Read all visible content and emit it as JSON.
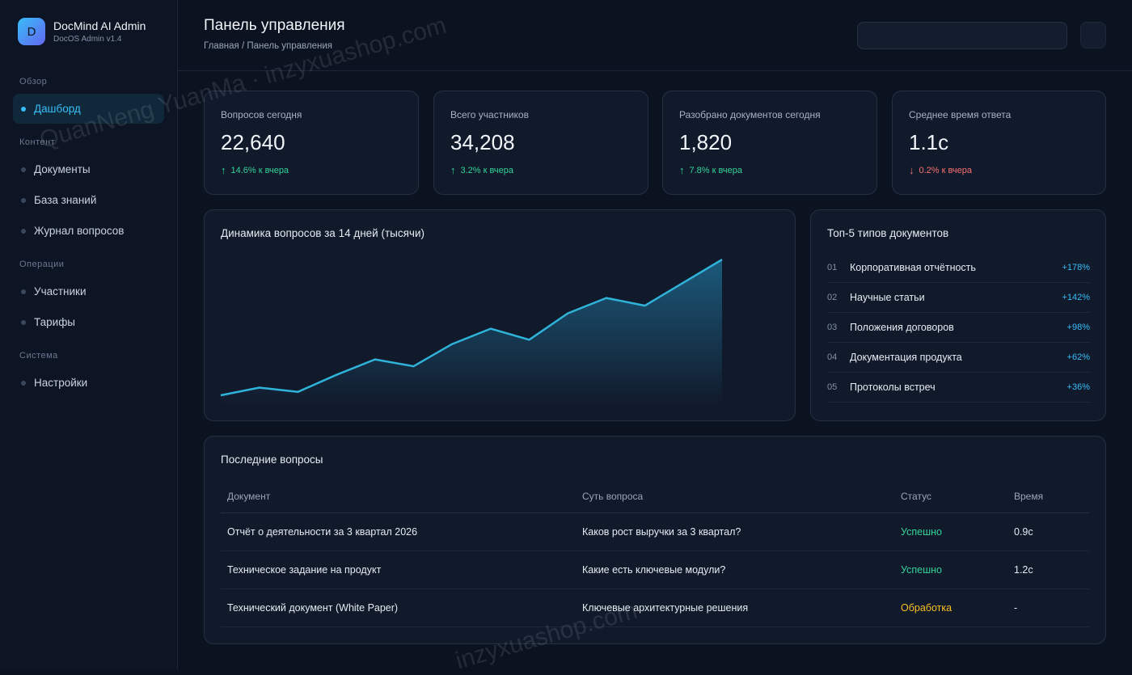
{
  "brand": {
    "logo_letter": "D",
    "name": "DocMind AI Admin",
    "version": "DocOS Admin v1.4"
  },
  "sidebar": {
    "sections": [
      {
        "title": "Обзор"
      },
      {
        "title": "Контент"
      },
      {
        "title": "Операции"
      },
      {
        "title": "Система"
      }
    ],
    "items": [
      {
        "label": "Дашборд",
        "active": true
      },
      {
        "label": "Документы"
      },
      {
        "label": "База знаний"
      },
      {
        "label": "Журнал вопросов"
      },
      {
        "label": "Участники"
      },
      {
        "label": "Тарифы"
      },
      {
        "label": "Настройки"
      }
    ]
  },
  "header": {
    "title": "Панель управления",
    "breadcrumb": "Главная / Панель управления"
  },
  "stats": [
    {
      "label": "Вопросов сегодня",
      "value": "22,640",
      "arrow": "↑",
      "delta": "14.6% к вчера",
      "trend": "up"
    },
    {
      "label": "Всего участников",
      "value": "34,208",
      "arrow": "↑",
      "delta": "3.2% к вчера",
      "trend": "up"
    },
    {
      "label": "Разобрано документов сегодня",
      "value": "1,820",
      "arrow": "↑",
      "delta": "7.8% к вчера",
      "trend": "up"
    },
    {
      "label": "Среднее время ответа",
      "value": "1.1c",
      "arrow": "↓",
      "delta": "0.2% к вчера",
      "trend": "down"
    }
  ],
  "line_chart": {
    "title": "Динамика вопросов за 14 дней (тысячи)"
  },
  "chart_data": {
    "type": "area",
    "title": "Динамика вопросов за 14 дней (тысячи)",
    "x": [
      1,
      2,
      3,
      4,
      5,
      6,
      7,
      8,
      9,
      10,
      11,
      12,
      13,
      14
    ],
    "series": [
      {
        "values": [
          0.0,
          0.9,
          0.4,
          2.4,
          4.2,
          3.4,
          6.0,
          7.8,
          6.5,
          9.6,
          11.4,
          10.5,
          13.2,
          15.9
        ]
      }
    ],
    "xlabel": "",
    "ylabel": "",
    "ylim": [
      0,
      16
    ],
    "grid": false,
    "legend": "none",
    "colors": {
      "line": "#2fb3d9",
      "fill": "#1f6f96"
    }
  },
  "top_types": {
    "title": "Топ-5 типов документов",
    "items": [
      {
        "num": "01",
        "name": "Корпоративная отчётность",
        "pct": "+178%"
      },
      {
        "num": "02",
        "name": "Научные статьи",
        "pct": "+142%"
      },
      {
        "num": "03",
        "name": "Положения договоров",
        "pct": "+98%"
      },
      {
        "num": "04",
        "name": "Документация продукта",
        "pct": "+62%"
      },
      {
        "num": "05",
        "name": "Протоколы встреч",
        "pct": "+36%"
      }
    ]
  },
  "recent": {
    "title": "Последние вопросы",
    "columns": [
      "Документ",
      "Суть вопроса",
      "Статус",
      "Время"
    ],
    "rows": [
      {
        "doc": "Отчёт о деятельности за 3 квартал 2026",
        "question": "Каков рост выручки за 3 квартал?",
        "status": "Успешно",
        "status_kind": "success",
        "time": "0.9с"
      },
      {
        "doc": "Техническое задание на продукт",
        "question": "Какие есть ключевые модули?",
        "status": "Успешно",
        "status_kind": "success",
        "time": "1.2с"
      },
      {
        "doc": "Технический документ (White Paper)",
        "question": "Ключевые архитектурные решения",
        "status": "Обработка",
        "status_kind": "processing",
        "time": "-"
      }
    ]
  },
  "watermark": {
    "text_top": "QuanNeng YuanMa · inzyxuashop.com",
    "text_bottom": "inzyxuashop.com"
  },
  "colors": {
    "accent": "#38bdf8",
    "success": "#34d399",
    "danger": "#f87171",
    "warning": "#fbbf24",
    "background": "#0b1220"
  }
}
